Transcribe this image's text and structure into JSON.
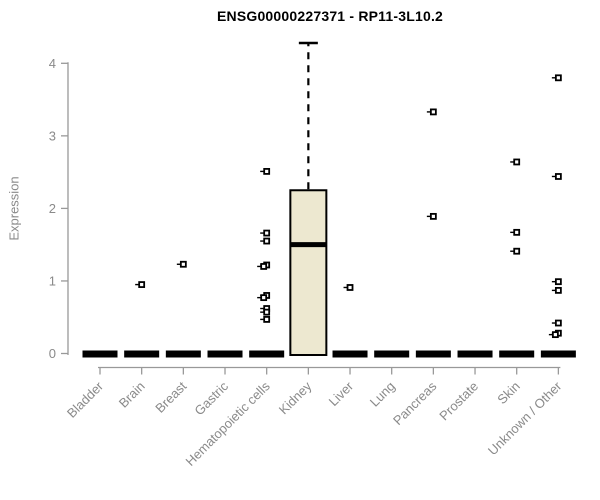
{
  "chart_data": {
    "type": "boxplot",
    "title": "ENSG00000227371 - RP11-3L10.2",
    "ylabel": "Expression",
    "xlabel": "",
    "ylim": [
      0,
      4
    ],
    "yticks": [
      0,
      1,
      2,
      3,
      4
    ],
    "grid": "off",
    "legend": "none",
    "categories": [
      "Bladder",
      "Brain",
      "Breast",
      "Gastric",
      "Hematopoietic cells",
      "Kidney",
      "Liver",
      "Lung",
      "Pancreas",
      "Prostate",
      "Skin",
      "Unknown / Other"
    ],
    "boxes": [
      {
        "category": "Bladder",
        "q1": 0,
        "median": 0,
        "q3": 0,
        "whisker_low": 0,
        "whisker_high": 0,
        "outliers": []
      },
      {
        "category": "Brain",
        "q1": 0,
        "median": 0,
        "q3": 0,
        "whisker_low": 0,
        "whisker_high": 0,
        "outliers": [
          0.95
        ]
      },
      {
        "category": "Breast",
        "q1": 0,
        "median": 0,
        "q3": 0,
        "whisker_low": 0,
        "whisker_high": 0,
        "outliers": [
          1.23
        ]
      },
      {
        "category": "Gastric",
        "q1": 0,
        "median": 0,
        "q3": 0,
        "whisker_low": 0,
        "whisker_high": 0,
        "outliers": []
      },
      {
        "category": "Hematopoietic cells",
        "q1": 0,
        "median": 0,
        "q3": 0,
        "whisker_low": 0,
        "whisker_high": 0,
        "outliers": [
          2.51,
          1.66,
          1.55,
          1.22,
          1.2,
          0.8,
          0.77,
          0.62,
          0.57,
          0.47
        ]
      },
      {
        "category": "Kidney",
        "q1": 0,
        "median": 1.5,
        "q3": 2.25,
        "whisker_low": 0,
        "whisker_high": 4.28,
        "outliers": []
      },
      {
        "category": "Liver",
        "q1": 0,
        "median": 0,
        "q3": 0,
        "whisker_low": 0,
        "whisker_high": 0,
        "outliers": [
          0.91
        ]
      },
      {
        "category": "Lung",
        "q1": 0,
        "median": 0,
        "q3": 0,
        "whisker_low": 0,
        "whisker_high": 0,
        "outliers": []
      },
      {
        "category": "Pancreas",
        "q1": 0,
        "median": 0,
        "q3": 0,
        "whisker_low": 0,
        "whisker_high": 0,
        "outliers": [
          3.33,
          1.89
        ]
      },
      {
        "category": "Prostate",
        "q1": 0,
        "median": 0,
        "q3": 0,
        "whisker_low": 0,
        "whisker_high": 0,
        "outliers": []
      },
      {
        "category": "Skin",
        "q1": 0,
        "median": 0,
        "q3": 0,
        "whisker_low": 0,
        "whisker_high": 0,
        "outliers": [
          2.64,
          1.67,
          1.41
        ]
      },
      {
        "category": "Unknown / Other",
        "q1": 0,
        "median": 0,
        "q3": 0,
        "whisker_low": 0,
        "whisker_high": 0,
        "outliers": [
          3.8,
          2.44,
          0.99,
          0.87,
          0.42,
          0.28,
          0.26
        ]
      }
    ],
    "colors": {
      "box_fill": "#EDE8D0",
      "box_stroke": "#000000",
      "median_color": "#000000",
      "outlier_color": "#000000",
      "axis_color": "#999999",
      "tick_label_color": "#8a8a8a",
      "title_color": "#000000",
      "background": "#ffffff"
    }
  }
}
